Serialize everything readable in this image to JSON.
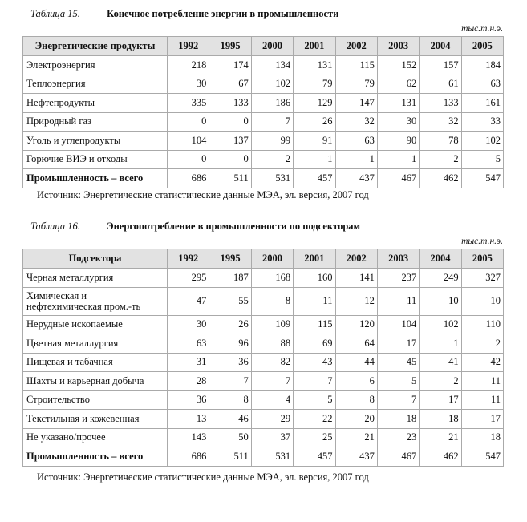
{
  "table15": {
    "number": "Таблица 15.",
    "title": "Конечное потребление энергии в промышленности",
    "unit": "тыс.т.н.э.",
    "columns": [
      "Энергетические продукты",
      "1992",
      "1995",
      "2000",
      "2001",
      "2002",
      "2003",
      "2004",
      "2005"
    ],
    "rows": [
      [
        "Электроэнергия",
        "218",
        "174",
        "134",
        "131",
        "115",
        "152",
        "157",
        "184"
      ],
      [
        "Теплоэнергия",
        "30",
        "67",
        "102",
        "79",
        "79",
        "62",
        "61",
        "63"
      ],
      [
        "Нефтепродукты",
        "335",
        "133",
        "186",
        "129",
        "147",
        "131",
        "133",
        "161"
      ],
      [
        "Природный газ",
        "0",
        "0",
        "7",
        "26",
        "32",
        "30",
        "32",
        "33"
      ],
      [
        "Уголь и углепродукты",
        "104",
        "137",
        "99",
        "91",
        "63",
        "90",
        "78",
        "102"
      ],
      [
        "Горючие ВИЭ и отходы",
        "0",
        "0",
        "2",
        "1",
        "1",
        "1",
        "2",
        "5"
      ],
      [
        "Промышленность – всего",
        "686",
        "511",
        "531",
        "457",
        "437",
        "467",
        "462",
        "547"
      ]
    ],
    "source": "Источник: Энергетические статистические данные МЭА, эл. версия, 2007 год"
  },
  "table16": {
    "number": "Таблица 16.",
    "title": "Энергопотребление в промышленности по подсекторам",
    "unit": "тыс.т.н.э.",
    "columns": [
      "Подсектора",
      "1992",
      "1995",
      "2000",
      "2001",
      "2002",
      "2003",
      "2004",
      "2005"
    ],
    "rows": [
      [
        "Черная металлургия",
        "295",
        "187",
        "168",
        "160",
        "141",
        "237",
        "249",
        "327"
      ],
      [
        "Химическая и нефтехимическая пром.-ть",
        "47",
        "55",
        "8",
        "11",
        "12",
        "11",
        "10",
        "10"
      ],
      [
        "Нерудные ископаемые",
        "30",
        "26",
        "109",
        "115",
        "120",
        "104",
        "102",
        "110"
      ],
      [
        "Цветная металлургия",
        "63",
        "96",
        "88",
        "69",
        "64",
        "17",
        "1",
        "2"
      ],
      [
        "Пищевая и табачная",
        "31",
        "36",
        "82",
        "43",
        "44",
        "45",
        "41",
        "42"
      ],
      [
        "Шахты и карьерная добыча",
        "28",
        "7",
        "7",
        "7",
        "6",
        "5",
        "2",
        "11"
      ],
      [
        "Строительство",
        "36",
        "8",
        "4",
        "5",
        "8",
        "7",
        "17",
        "11"
      ],
      [
        "Текстильная и кожевенная",
        "13",
        "46",
        "29",
        "22",
        "20",
        "18",
        "18",
        "17"
      ],
      [
        "Не указано/прочее",
        "143",
        "50",
        "37",
        "25",
        "21",
        "23",
        "21",
        "18"
      ],
      [
        "Промышленность – всего",
        "686",
        "511",
        "531",
        "457",
        "437",
        "467",
        "462",
        "547"
      ]
    ],
    "source": "Источник: Энергетические статистические данные МЭА, эл. версия, 2007 год"
  }
}
